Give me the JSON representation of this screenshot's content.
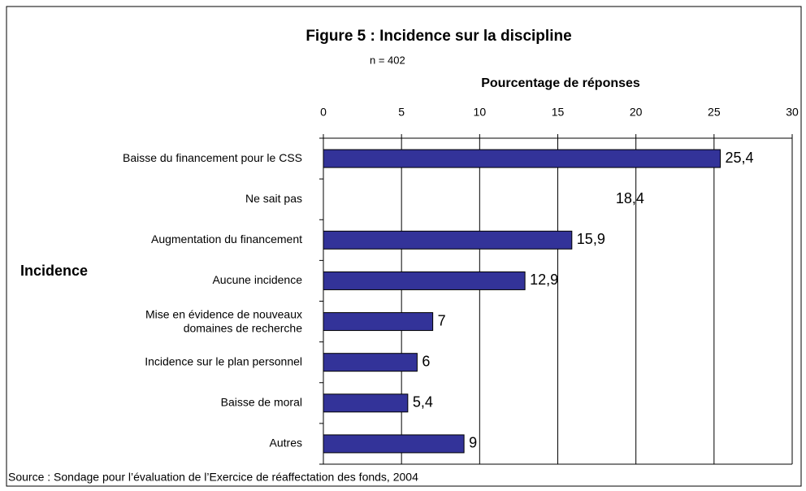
{
  "chart_data": {
    "type": "bar",
    "orientation": "horizontal",
    "title": "Figure 5 : Incidence sur la discipline",
    "subtitle": "n = 402",
    "x_label": "Pourcentage de réponses",
    "y_label": "Incidence",
    "source": "Source : Sondage pour l’évaluation de l’Exercice de réaffectation des fonds, 2004",
    "categories": [
      "Baisse du financement pour le CSS",
      "Ne sait pas",
      "Augmentation du financement",
      "Aucune incidence",
      "Mise en évidence de nouveaux\ndomaines de recherche",
      "Incidence sur le plan personnel",
      "Baisse de moral",
      "Autres"
    ],
    "values": [
      25.4,
      18.4,
      15.9,
      12.9,
      7,
      6,
      5.4,
      9
    ],
    "value_labels": [
      "25,4",
      "18,4",
      "15,9",
      "12,9",
      "7",
      "6",
      "5,4",
      "9"
    ],
    "colors": [
      "#333399",
      "none",
      "#333399",
      "#333399",
      "#333399",
      "#333399",
      "#333399",
      "#333399"
    ],
    "xlim": [
      0,
      30
    ],
    "xticks": [
      0,
      5,
      10,
      15,
      20,
      25,
      30
    ],
    "grid": true
  }
}
